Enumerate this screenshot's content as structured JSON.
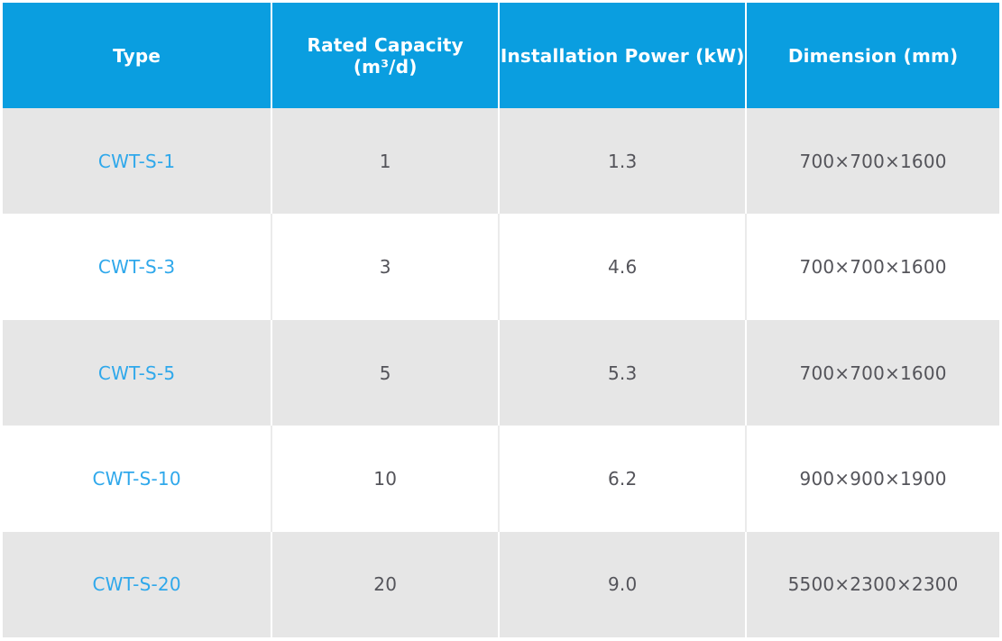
{
  "colors": {
    "header_bg": "#0A9EE0",
    "header_text": "#FFFFFF",
    "row_alt_bg": "#E6E6E6",
    "row_bg": "#FFFFFF",
    "type_link": "#2FA8EB",
    "body_text": "#54545A",
    "divider_on_gray": "#FFFFFF",
    "divider_on_white": "#EBEBEB"
  },
  "table": {
    "columns": [
      "Type",
      "Rated Capacity (m³/d)",
      "Installation Power (kW)",
      "Dimension (mm)"
    ],
    "rows": [
      {
        "type": "CWT-S-1",
        "capacity": "1",
        "power": "1.3",
        "dimension": "700×700×1600"
      },
      {
        "type": "CWT-S-3",
        "capacity": "3",
        "power": "4.6",
        "dimension": "700×700×1600"
      },
      {
        "type": "CWT-S-5",
        "capacity": "5",
        "power": "5.3",
        "dimension": "700×700×1600"
      },
      {
        "type": "CWT-S-10",
        "capacity": "10",
        "power": "6.2",
        "dimension": "900×900×1900"
      },
      {
        "type": "CWT-S-20",
        "capacity": "20",
        "power": "9.0",
        "dimension": "5500×2300×2300"
      }
    ]
  },
  "chart_data": {
    "type": "table",
    "title": "",
    "columns": [
      "Type",
      "Rated Capacity (m³/d)",
      "Installation Power (kW)",
      "Dimension (mm)"
    ],
    "rows": [
      [
        "CWT-S-1",
        1,
        1.3,
        "700×700×1600"
      ],
      [
        "CWT-S-3",
        3,
        4.6,
        "700×700×1600"
      ],
      [
        "CWT-S-5",
        5,
        5.3,
        "700×700×1600"
      ],
      [
        "CWT-S-10",
        10,
        6.2,
        "900×900×1900"
      ],
      [
        "CWT-S-20",
        20,
        9.0,
        "5500×2300×2300"
      ]
    ],
    "layout_hints": {
      "header_fill": "#0A9EE0",
      "alternating_row_fill": [
        "#E6E6E6",
        "#FFFFFF"
      ],
      "first_column_style": "link-blue",
      "grid": "vertical-dividers-only"
    }
  }
}
